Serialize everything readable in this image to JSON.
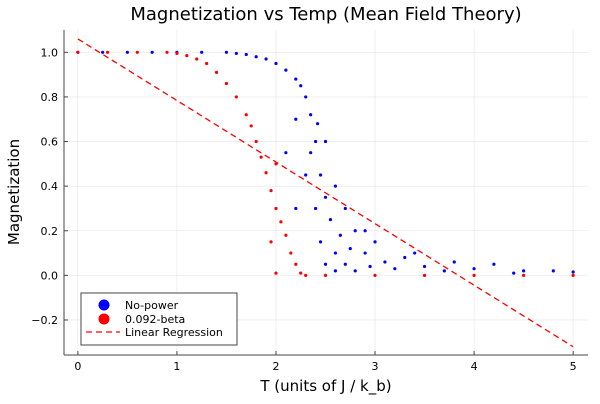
{
  "chart_data": {
    "type": "scatter",
    "title": "Magnetization vs Temp (Mean Field Theory)",
    "xlabel": "T (units of J / k_b)",
    "ylabel": "Magnetization",
    "xlim": [
      -0.14,
      5.15
    ],
    "ylim": [
      -0.357,
      1.1
    ],
    "xticks": [
      0,
      1,
      2,
      3,
      4,
      5
    ],
    "xtick_labels": [
      "0",
      "1",
      "2",
      "3",
      "4",
      "5"
    ],
    "yticks": [
      -0.2,
      0.0,
      0.2,
      0.4,
      0.6,
      0.8,
      1.0
    ],
    "ytick_labels": [
      "−0.2",
      "0.0",
      "0.2",
      "0.4",
      "0.6",
      "0.8",
      "1.0"
    ],
    "grid": true,
    "legend_position": "bottom-left",
    "series": [
      {
        "name": "No-power",
        "color": "#0000ff",
        "x": [
          0,
          0.25,
          0.5,
          0.75,
          1.0,
          1.25,
          1.5,
          1.6,
          1.7,
          1.8,
          1.9,
          2.0,
          2.1,
          2.2,
          2.25,
          2.3,
          2.35,
          2.4,
          2.4,
          2.42,
          2.45,
          2.45,
          2.5,
          2.5,
          2.55,
          2.6,
          2.6,
          2.65,
          2.7,
          2.7,
          2.75,
          2.8,
          2.8,
          2.9,
          2.95,
          3.0,
          3.1,
          3.2,
          3.3,
          3.5,
          3.7,
          4.0,
          4.2,
          4.5,
          4.8,
          5.0,
          2.1,
          2.2,
          2.3,
          2.2,
          2.35,
          2.5,
          2.6,
          2.9,
          3.4,
          3.8,
          4.4
        ],
        "y": [
          1,
          1,
          1,
          1,
          1,
          1,
          1,
          0.995,
          0.99,
          0.98,
          0.97,
          0.95,
          0.92,
          0.88,
          0.85,
          0.8,
          0.72,
          0.6,
          0.3,
          0.68,
          0.45,
          0.15,
          0.35,
          0.05,
          0.25,
          0.4,
          0.1,
          0.18,
          0.3,
          0.05,
          0.12,
          0.2,
          0.02,
          0.1,
          0.04,
          0.15,
          0.06,
          0.03,
          0.08,
          0.04,
          0.02,
          0.03,
          0.05,
          0.02,
          0.02,
          0.015,
          0.55,
          0.7,
          0.45,
          0.3,
          0.55,
          0.6,
          0.02,
          0.2,
          0.1,
          0.06,
          0.01
        ]
      },
      {
        "name": "0.092-beta",
        "color": "#ff0000",
        "x": [
          0,
          0.3,
          0.6,
          0.9,
          1.0,
          1.1,
          1.2,
          1.3,
          1.4,
          1.5,
          1.6,
          1.7,
          1.75,
          1.8,
          1.85,
          1.9,
          1.95,
          2.0,
          2.05,
          2.1,
          2.15,
          2.2,
          2.25,
          2.0,
          2.3,
          2.5,
          3.0,
          3.5,
          4.0,
          4.5,
          5.0,
          1.95,
          2.0
        ],
        "y": [
          1,
          1,
          1,
          1,
          0.995,
          0.985,
          0.97,
          0.95,
          0.91,
          0.86,
          0.8,
          0.72,
          0.67,
          0.6,
          0.53,
          0.46,
          0.38,
          0.3,
          0.24,
          0.18,
          0.1,
          0.05,
          0.01,
          0.01,
          0,
          0,
          0,
          0,
          0,
          0,
          0,
          0.15,
          0.5
        ]
      },
      {
        "name": "Linear Regression",
        "color": "#ff0000",
        "type": "line",
        "x": [
          0,
          5
        ],
        "y": [
          1.06,
          -0.32
        ]
      }
    ]
  }
}
